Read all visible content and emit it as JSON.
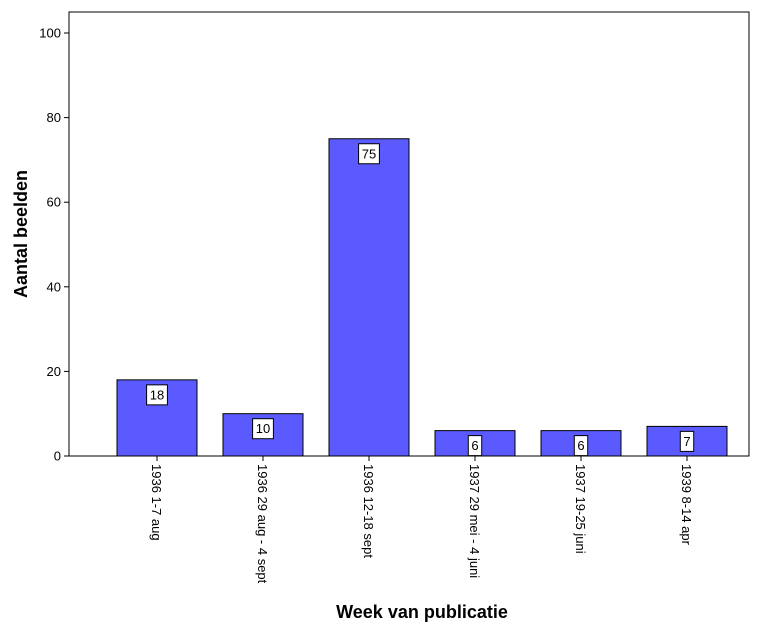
{
  "chart_data": {
    "type": "bar",
    "title": "",
    "xlabel": "Week van publicatie",
    "ylabel": "Aantal beelden",
    "categories": [
      "1936 1-7 aug",
      "1936 29 aug - 4 sept",
      "1936 12-18 sept",
      "1937 29 mei - 4 juni",
      "1937 19-25 juni",
      "1939 8-14 apr"
    ],
    "values": [
      18,
      10,
      75,
      6,
      6,
      7
    ],
    "data_labels": [
      "18",
      "10",
      "75",
      "6",
      "6",
      "7"
    ],
    "ylim": [
      0,
      100
    ],
    "yticks": [
      0,
      20,
      40,
      60,
      80,
      100
    ],
    "ytick_labels": [
      "0",
      "20",
      "40",
      "60",
      "80",
      "100"
    ],
    "grid": false,
    "legend": "none",
    "bar_color": "#5a5aff"
  }
}
